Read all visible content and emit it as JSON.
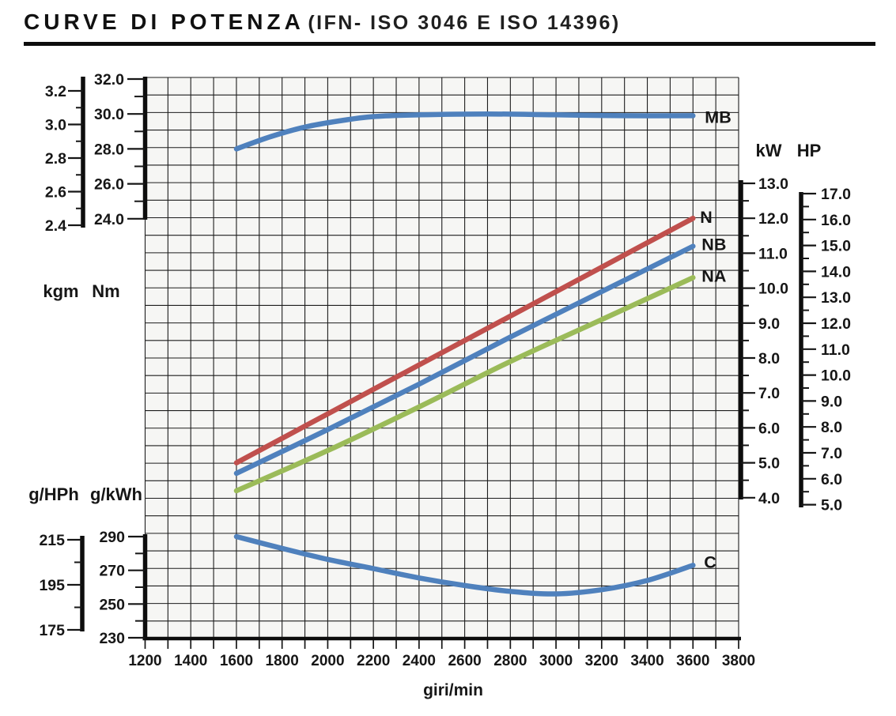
{
  "title": {
    "main": "CURVE DI POTENZA",
    "sub": "(IFN- ISO 3046 E ISO 14396)"
  },
  "chart_data": {
    "type": "line",
    "title": "CURVE DI POTENZA (IFN- ISO 3046 E ISO 14396)",
    "grid": "on",
    "x_axis": {
      "title": "giri/min",
      "min": 1200,
      "max": 3800,
      "major_step": 200,
      "minor_step": 100,
      "tick_labels": [
        "1200",
        "1400",
        "1600",
        "1800",
        "2000",
        "2200",
        "2400",
        "2600",
        "2800",
        "3000",
        "3200",
        "3400",
        "3600",
        "3800"
      ]
    },
    "y_axes": [
      {
        "id": "kgm",
        "unit": "kgm",
        "group": "torque",
        "range": [
          2.4,
          3.2
        ],
        "tick_labels": [
          "3.2",
          "3.0",
          "2.8",
          "2.6",
          "2.4"
        ],
        "minor_ticks": [
          3.1,
          2.9,
          2.7,
          2.5
        ]
      },
      {
        "id": "Nm",
        "unit": "Nm",
        "group": "torque",
        "range": [
          24.0,
          32.0
        ],
        "tick_labels": [
          "32.0",
          "30.0",
          "28.0",
          "26.0",
          "24.0"
        ],
        "minor_ticks": [
          31,
          29,
          27,
          25
        ]
      },
      {
        "id": "kW",
        "unit": "kW",
        "group": "power",
        "range": [
          4.0,
          13.0
        ],
        "tick_labels": [
          "13.0",
          "12.0",
          "11.0",
          "10.0",
          "9.0",
          "8.0",
          "7.0",
          "6.0",
          "5.0",
          "4.0"
        ],
        "minor_ticks": [
          12.5,
          11.5,
          10.5,
          9.5,
          8.5,
          7.5,
          6.5,
          5.5,
          4.5
        ]
      },
      {
        "id": "HP",
        "unit": "HP",
        "group": "power",
        "range": [
          5.0,
          17.0
        ],
        "tick_labels": [
          "17.0",
          "16.0",
          "15.0",
          "14.0",
          "13.0",
          "12.0",
          "11.0",
          "10.0",
          "9.0",
          "8.0",
          "7.0",
          "6.0",
          "5.0"
        ],
        "minor_ticks": [
          16.5,
          15.5,
          14.5,
          13.5,
          12.5,
          11.5,
          10.5,
          9.5,
          8.5,
          7.5,
          6.5,
          5.5
        ]
      },
      {
        "id": "g/HPh",
        "unit": "g/HPh",
        "group": "consumption",
        "range": [
          175,
          215
        ],
        "tick_labels": [
          "215",
          "195",
          "175"
        ],
        "minor_ticks": [
          205,
          185
        ]
      },
      {
        "id": "g/kWh",
        "unit": "g/kWh",
        "group": "consumption",
        "range": [
          230,
          290
        ],
        "tick_labels": [
          "290",
          "270",
          "250",
          "230"
        ],
        "minor_ticks": [
          280,
          260,
          240
        ]
      }
    ],
    "series": [
      {
        "name": "MB",
        "label": "MB",
        "y_axis": "Nm",
        "color": "#4f81bd",
        "points": [
          [
            1600,
            28.0
          ],
          [
            1750,
            28.7
          ],
          [
            1900,
            29.25
          ],
          [
            2050,
            29.6
          ],
          [
            2200,
            29.85
          ],
          [
            2400,
            29.95
          ],
          [
            2700,
            30.0
          ],
          [
            3000,
            29.95
          ],
          [
            3300,
            29.9
          ],
          [
            3600,
            29.9
          ]
        ]
      },
      {
        "name": "N",
        "label": "N",
        "y_axis": "kW",
        "color": "#c0504d",
        "points": [
          [
            1600,
            5.0
          ],
          [
            2000,
            6.4
          ],
          [
            2400,
            7.8
          ],
          [
            2800,
            9.2
          ],
          [
            3200,
            10.6
          ],
          [
            3600,
            12.0
          ]
        ]
      },
      {
        "name": "NB",
        "label": "NB",
        "y_axis": "kW",
        "color": "#4f81bd",
        "points": [
          [
            1600,
            4.7
          ],
          [
            2000,
            5.95
          ],
          [
            2400,
            7.25
          ],
          [
            2800,
            8.6
          ],
          [
            3200,
            9.9
          ],
          [
            3600,
            11.2
          ]
        ]
      },
      {
        "name": "NA",
        "label": "NA",
        "y_axis": "kW",
        "color": "#9bbb59",
        "points": [
          [
            1600,
            4.2
          ],
          [
            2000,
            5.35
          ],
          [
            2400,
            6.6
          ],
          [
            2800,
            7.9
          ],
          [
            3200,
            9.1
          ],
          [
            3600,
            10.3
          ]
        ]
      },
      {
        "name": "C",
        "label": "C",
        "y_axis": "g/kWh",
        "color": "#4f81bd",
        "points": [
          [
            1600,
            290
          ],
          [
            1800,
            283
          ],
          [
            2000,
            276.5
          ],
          [
            2200,
            271
          ],
          [
            2400,
            265.5
          ],
          [
            2600,
            261
          ],
          [
            2800,
            257.5
          ],
          [
            3000,
            256
          ],
          [
            3200,
            258.5
          ],
          [
            3400,
            264
          ],
          [
            3600,
            273
          ]
        ]
      }
    ]
  }
}
